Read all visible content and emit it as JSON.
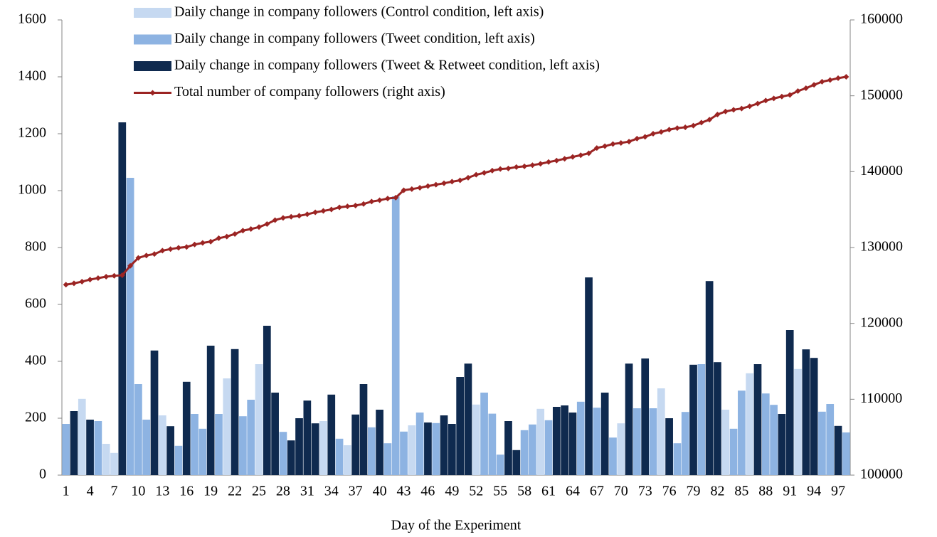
{
  "chart_data": {
    "type": "bar-line",
    "x_label": "Day of the Experiment",
    "legend": "upper-left",
    "categories": [
      "1",
      null,
      null,
      "4",
      null,
      null,
      "7",
      null,
      null,
      "10",
      null,
      null,
      "13",
      null,
      null,
      "16",
      null,
      null,
      "19",
      null,
      null,
      "22",
      null,
      null,
      "25",
      null,
      null,
      "28",
      null,
      null,
      "31",
      null,
      null,
      "34",
      null,
      null,
      "37",
      null,
      null,
      "40",
      null,
      null,
      "43",
      null,
      null,
      "46",
      null,
      null,
      "49",
      null,
      null,
      "52",
      null,
      null,
      "55",
      null,
      null,
      "58",
      null,
      null,
      "61",
      null,
      null,
      "64",
      null,
      null,
      "67",
      null,
      null,
      "70",
      null,
      null,
      "73",
      null,
      null,
      "76",
      null,
      null,
      "79",
      null,
      null,
      "82",
      null,
      null,
      "85",
      null,
      null,
      "88",
      null,
      null,
      "91",
      null,
      null,
      "94",
      null,
      null,
      "97",
      null
    ],
    "ylim": [
      0,
      1600
    ],
    "yticks": [
      0,
      200,
      400,
      600,
      800,
      1000,
      1200,
      1400,
      1600
    ],
    "y2lim": [
      100000,
      160000
    ],
    "y2ticks": [
      100000,
      110000,
      120000,
      130000,
      140000,
      150000,
      160000
    ],
    "series": [
      {
        "name": "Daily change in company followers (Control condition, left axis)",
        "type": "bar",
        "color": "#c6d9f1",
        "values": [
          null,
          null,
          268,
          null,
          null,
          110,
          78,
          null,
          null,
          null,
          null,
          null,
          210,
          null,
          null,
          null,
          null,
          null,
          null,
          null,
          340,
          null,
          null,
          null,
          390,
          null,
          null,
          null,
          null,
          null,
          null,
          null,
          190,
          null,
          null,
          105,
          null,
          null,
          null,
          null,
          null,
          null,
          null,
          175,
          null,
          null,
          null,
          null,
          null,
          null,
          null,
          248,
          null,
          null,
          null,
          null,
          null,
          null,
          null,
          233,
          null,
          null,
          null,
          null,
          null,
          null,
          null,
          null,
          null,
          182,
          null,
          null,
          null,
          null,
          305,
          null,
          null,
          null,
          null,
          null,
          null,
          null,
          230,
          null,
          null,
          358,
          null,
          null,
          null,
          null,
          null,
          373,
          null,
          null,
          null,
          null,
          null,
          null
        ]
      },
      {
        "name": "Daily change in company followers (Tweet condition, left axis)",
        "type": "bar",
        "color": "#8db3e2",
        "values": [
          180,
          null,
          null,
          null,
          190,
          null,
          null,
          null,
          1045,
          320,
          195,
          null,
          null,
          null,
          103,
          null,
          215,
          163,
          null,
          215,
          null,
          null,
          207,
          265,
          null,
          null,
          null,
          152,
          null,
          null,
          null,
          null,
          null,
          null,
          128,
          null,
          null,
          null,
          168,
          null,
          112,
          980,
          153,
          null,
          220,
          null,
          183,
          null,
          null,
          null,
          null,
          null,
          290,
          216,
          72,
          null,
          null,
          158,
          178,
          null,
          193,
          null,
          null,
          null,
          258,
          null,
          237,
          null,
          132,
          null,
          null,
          235,
          null,
          235,
          null,
          null,
          112,
          222,
          null,
          390,
          null,
          null,
          null,
          163,
          297,
          null,
          null,
          287,
          247,
          null,
          null,
          null,
          null,
          null,
          223,
          250,
          null,
          150
        ]
      },
      {
        "name": "Daily change in company followers (Tweet & Retweet condition, left axis)",
        "type": "bar",
        "color": "#0f2a4f",
        "values": [
          null,
          225,
          null,
          195,
          null,
          null,
          null,
          1240,
          null,
          null,
          null,
          438,
          null,
          172,
          null,
          328,
          null,
          null,
          455,
          null,
          null,
          443,
          null,
          null,
          null,
          525,
          290,
          null,
          122,
          200,
          262,
          182,
          null,
          283,
          null,
          null,
          213,
          320,
          null,
          230,
          null,
          null,
          null,
          null,
          null,
          185,
          null,
          210,
          180,
          345,
          392,
          null,
          null,
          null,
          null,
          190,
          88,
          null,
          null,
          null,
          null,
          240,
          245,
          220,
          null,
          695,
          null,
          290,
          null,
          null,
          392,
          null,
          410,
          null,
          null,
          200,
          null,
          null,
          388,
          null,
          682,
          397,
          null,
          null,
          null,
          null,
          390,
          null,
          null,
          215,
          510,
          null,
          442,
          412,
          null,
          null,
          173,
          null
        ]
      },
      {
        "name": "Total number of company followers (right axis)",
        "type": "line",
        "axis": "y2",
        "color": "#9b2423",
        "values": [
          125100,
          125280,
          125505,
          125773,
          125968,
          126158,
          126268,
          126346,
          127586,
          128631,
          128951,
          129146,
          129584,
          129794,
          129966,
          130069,
          130397,
          130612,
          130775,
          131230,
          131445,
          131785,
          132228,
          132435,
          132700,
          133090,
          133615,
          133905,
          134057,
          134179,
          134379,
          134641,
          134823,
          135013,
          135296,
          135424,
          135529,
          135742,
          136062,
          136230,
          136460,
          136572,
          137552,
          137705,
          137880,
          138100,
          138285,
          138468,
          138678,
          138858,
          139203,
          139595,
          139843,
          140133,
          140349,
          140421,
          140611,
          140699,
          140857,
          141035,
          141268,
          141461,
          141701,
          141946,
          142166,
          142424,
          143119,
          143356,
          143646,
          143778,
          143960,
          144352,
          144587,
          144997,
          145232,
          145537,
          145737,
          145849,
          146071,
          146459,
          146849,
          147531,
          147928,
          148158,
          148321,
          148618,
          148976,
          149366,
          149653,
          149900,
          150115,
          150625,
          150998,
          151440,
          151852,
          152075,
          152325,
          152498
        ]
      }
    ]
  }
}
